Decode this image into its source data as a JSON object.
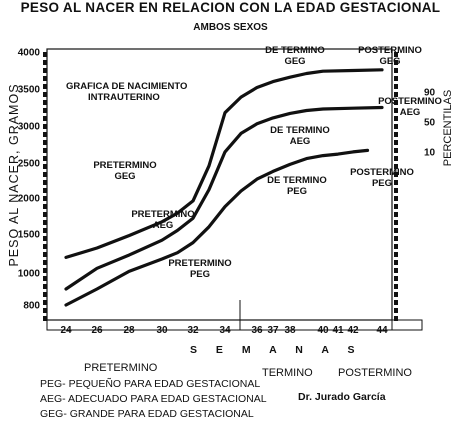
{
  "chart_data": {
    "type": "line",
    "title": "PESO AL NACER EN RELACION CON LA EDAD GESTACIONAL",
    "subtitle": "AMBOS SEXOS",
    "ylabel": "PESO AL NACER, GRAMOS",
    "xlabel": "S E M A N A S",
    "y2label": "PERCENTILAS",
    "ylim": [
      700,
      4000
    ],
    "xlim": [
      23,
      46
    ],
    "yticks": [
      "800",
      "1000",
      "1500",
      "2000",
      "2500",
      "3000",
      "3500",
      "4000"
    ],
    "xticks": [
      "24",
      "26",
      "28",
      "30",
      "32",
      "34",
      "36",
      "37",
      "38",
      "40",
      "41",
      "42",
      "44"
    ],
    "y2ticks": [
      "10",
      "50",
      "90"
    ],
    "series": [
      {
        "name": "90",
        "x": [
          24,
          26,
          28,
          30,
          31,
          32,
          33,
          34,
          35,
          36,
          37,
          38,
          39,
          40,
          42,
          44
        ],
        "values": [
          1200,
          1320,
          1480,
          1670,
          1790,
          1960,
          2460,
          3180,
          3390,
          3520,
          3600,
          3660,
          3710,
          3740,
          3750,
          3760
        ]
      },
      {
        "name": "50",
        "x": [
          24,
          26,
          28,
          30,
          31,
          32,
          33,
          34,
          35,
          36,
          37,
          38,
          39,
          40,
          42,
          44
        ],
        "values": [
          900,
          1060,
          1230,
          1420,
          1550,
          1720,
          2120,
          2650,
          2900,
          3030,
          3110,
          3170,
          3210,
          3230,
          3240,
          3250
        ]
      },
      {
        "name": "10",
        "x": [
          24,
          26,
          28,
          30,
          31,
          32,
          33,
          34,
          35,
          36,
          37,
          38,
          39,
          40,
          41,
          42,
          43
        ],
        "values": [
          800,
          900,
          1020,
          1180,
          1260,
          1390,
          1600,
          1880,
          2100,
          2270,
          2380,
          2480,
          2560,
          2600,
          2620,
          2650,
          2670
        ]
      }
    ],
    "annotations": [
      "GRAFICA DE NACIMIENTO INTRAUTERINO",
      "PRETERMINO GEG",
      "PRETERMINO AEG",
      "PRETERMINO PEG",
      "DE TERMINO GEG",
      "DE TERMINO AEG",
      "DE TERMINO PEG",
      "POSTERMINO GEG",
      "POSTERMINO AEG",
      "POSTERMINO PEG"
    ]
  },
  "sections": {
    "pretermino": "PRETERMINO",
    "termino": "TERMINO",
    "postermino": "POSTERMINO"
  },
  "legend": [
    "PEG- PEQUEÑO PARA EDAD GESTACIONAL",
    "AEG- ADECUADO PARA EDAD GESTACIONAL",
    "GEG- GRANDE PARA EDAD GESTACIONAL"
  ],
  "author": "Dr. Jurado García"
}
